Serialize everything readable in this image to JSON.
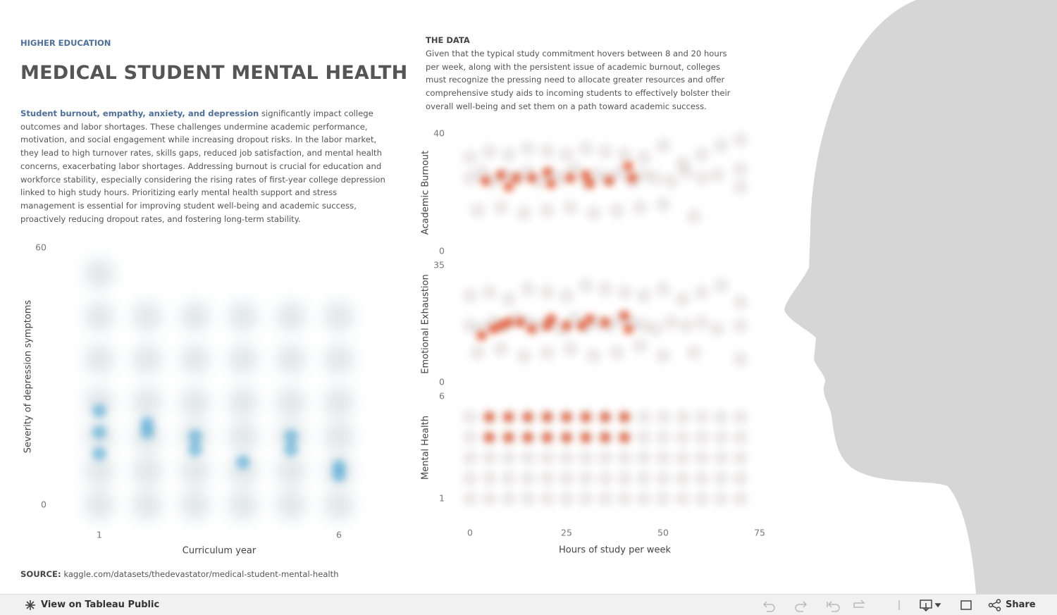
{
  "header": {
    "kicker": "HIGHER EDUCATION",
    "title": "MEDICAL STUDENT MENTAL HEALTH",
    "intro_highlight": "Student burnout, empathy, anxiety, and depression",
    "intro_rest": " significantly impact college outcomes and labor shortages. These challenges undermine academic performance, motivation, and social engagement while increasing dropout risks. In the labor market, they lead to high turnover rates, skills gaps, reduced job satisfaction, and mental health concerns, exacerbating labor shortages. Addressing burnout is crucial for education and workforce stability, especially considering the rising rates of first-year college depression linked to high study hours. Prioritizing early mental health support and stress management is essential for improving student well-being and academic success, proactively reducing dropout rates, and fostering long-term stability."
  },
  "data_note": {
    "heading": "THE DATA",
    "text": "Given that the typical study commitment hovers between 8 and 20 hours per week, along with the persistent issue of academic burnout, colleges must recognize the pressing need to allocate greater resources and offer comprehensive study aids to incoming students to effectively bolster their overall well-being and set them on a path toward academic success."
  },
  "source": {
    "label": "SOURCE:",
    "text": "kaggle.com/datasets/thedevastator/medical-student-mental-health"
  },
  "toolbar": {
    "view": "View on Tableau Public",
    "share": "Share"
  },
  "chart_data": [
    {
      "type": "density",
      "y_label": "Severity of depression symptoms",
      "x_label": "Curriculum year",
      "xlim": [
        0.4,
        6.6
      ],
      "xticks": [
        1,
        6
      ],
      "ylim": [
        0,
        60
      ],
      "yticks": [
        0,
        60
      ],
      "series": [
        {
          "color": "#b7c6cc",
          "x": [
            1,
            1,
            1,
            1,
            1,
            1,
            1,
            2,
            2,
            2,
            2,
            2,
            2,
            3,
            3,
            3,
            3,
            3,
            3,
            4,
            4,
            4,
            4,
            4,
            4,
            5,
            5,
            5,
            5,
            5,
            5,
            6,
            6,
            6,
            6,
            6,
            6
          ],
          "values": [
            0,
            8,
            16,
            24,
            34,
            44,
            54,
            0,
            8,
            16,
            24,
            34,
            44,
            0,
            8,
            16,
            24,
            34,
            44,
            0,
            8,
            16,
            24,
            34,
            44,
            0,
            8,
            16,
            24,
            34,
            44,
            0,
            8,
            16,
            24,
            34,
            44
          ]
        },
        {
          "color": "#3a9fd0",
          "x": [
            1,
            1,
            1,
            2,
            2,
            3,
            3,
            4,
            5,
            5,
            6,
            6
          ],
          "values": [
            12,
            17,
            22,
            17,
            19,
            13,
            16,
            10,
            13,
            16,
            7,
            9
          ]
        }
      ]
    },
    {
      "type": "density",
      "y_label": "Academic Burnout",
      "xlim": [
        -2,
        77
      ],
      "ylim": [
        0,
        40
      ],
      "yticks": [
        0,
        40
      ],
      "series": [
        {
          "color": "#c9c0c0",
          "x": [
            0,
            3,
            6,
            9,
            12,
            15,
            18,
            21,
            24,
            27,
            30,
            33,
            36,
            39,
            42,
            45,
            48,
            52,
            56,
            60,
            64,
            70,
            0,
            5,
            10,
            15,
            20,
            25,
            30,
            35,
            40,
            45,
            50,
            55,
            60,
            65,
            70,
            2,
            8,
            14,
            20,
            26,
            32,
            38,
            44,
            50,
            58,
            70
          ],
          "values": [
            25,
            27,
            24,
            26,
            25,
            27,
            24,
            26,
            25,
            28,
            24,
            26,
            25,
            27,
            24,
            26,
            25,
            24,
            27,
            25,
            26,
            28,
            32,
            34,
            33,
            35,
            34,
            33,
            35,
            34,
            33,
            32,
            36,
            30,
            33,
            36,
            38,
            14,
            15,
            13,
            14,
            15,
            13,
            14,
            15,
            16,
            12,
            22
          ]
        },
        {
          "color": "#e0441c",
          "x": [
            4,
            8,
            10,
            12,
            16,
            20,
            21,
            26,
            30,
            31,
            36,
            41,
            42
          ],
          "values": [
            24,
            26,
            22,
            25,
            25,
            27,
            23,
            25,
            26,
            23,
            24,
            29,
            25
          ]
        }
      ]
    },
    {
      "type": "density",
      "y_label": "Emotional Exhaustion",
      "xlim": [
        -2,
        77
      ],
      "ylim": [
        0,
        35
      ],
      "yticks": [
        0,
        35
      ],
      "series": [
        {
          "color": "#c9c0c0",
          "x": [
            0,
            3,
            6,
            9,
            12,
            15,
            18,
            21,
            24,
            27,
            30,
            33,
            36,
            39,
            42,
            45,
            48,
            52,
            56,
            60,
            64,
            70,
            0,
            5,
            10,
            15,
            20,
            25,
            30,
            35,
            40,
            45,
            50,
            55,
            60,
            65,
            70,
            2,
            8,
            14,
            20,
            26,
            32,
            38,
            44,
            50,
            58,
            70
          ],
          "values": [
            17,
            16,
            18,
            17,
            19,
            18,
            17,
            18,
            16,
            19,
            17,
            18,
            17,
            19,
            18,
            17,
            16,
            18,
            17,
            18,
            16,
            17,
            26,
            27,
            25,
            28,
            27,
            26,
            29,
            28,
            27,
            26,
            28,
            25,
            27,
            29,
            24,
            9,
            10,
            8,
            9,
            10,
            8,
            9,
            11,
            8,
            9,
            7
          ]
        },
        {
          "color": "#e0441c",
          "x": [
            3,
            6,
            8,
            10,
            13,
            16,
            20,
            21,
            25,
            29,
            31,
            35,
            40,
            41
          ],
          "values": [
            14,
            16,
            17,
            18,
            18,
            16,
            17,
            19,
            17,
            17,
            19,
            18,
            20,
            16
          ]
        }
      ]
    },
    {
      "type": "density",
      "y_label": "Mental Health",
      "x_label": "Hours of study per week",
      "xlim": [
        -2,
        77
      ],
      "xticks": [
        0,
        25,
        50,
        75
      ],
      "ylim": [
        1,
        6
      ],
      "yticks": [
        1,
        6
      ],
      "series": [
        {
          "color": "#c9c0c0",
          "x": [
            0,
            5,
            10,
            15,
            20,
            25,
            30,
            35,
            40,
            45,
            50,
            55,
            60,
            65,
            70,
            0,
            5,
            10,
            15,
            20,
            25,
            30,
            35,
            40,
            45,
            50,
            55,
            60,
            65,
            70,
            0,
            5,
            10,
            15,
            20,
            25,
            30,
            35,
            40,
            45,
            50,
            55,
            60,
            65,
            70,
            0,
            5,
            10,
            15,
            20,
            25,
            30,
            35,
            40,
            45,
            50,
            55,
            60,
            65,
            70,
            0,
            5,
            10,
            15,
            20,
            25,
            30,
            35,
            40,
            45,
            50,
            55,
            60,
            65,
            70
          ],
          "values": [
            5,
            5,
            5,
            5,
            5,
            5,
            5,
            5,
            5,
            5,
            5,
            5,
            5,
            5,
            5,
            4,
            4,
            4,
            4,
            4,
            4,
            4,
            4,
            4,
            4,
            4,
            4,
            4,
            4,
            4,
            3,
            3,
            3,
            3,
            3,
            3,
            3,
            3,
            3,
            3,
            3,
            3,
            3,
            3,
            3,
            2,
            2,
            2,
            2,
            2,
            2,
            2,
            2,
            2,
            2,
            2,
            2,
            2,
            2,
            2,
            1,
            1,
            1,
            1,
            1,
            1,
            1,
            1,
            1,
            1,
            1,
            1,
            1,
            1,
            1
          ]
        },
        {
          "color": "#e0441c",
          "x": [
            5,
            10,
            15,
            20,
            25,
            30,
            35,
            40,
            5,
            10,
            15,
            20,
            25,
            30,
            35,
            40
          ],
          "values": [
            5,
            5,
            5,
            5,
            5,
            5,
            5,
            5,
            4,
            4,
            4,
            4,
            4,
            4,
            4,
            4
          ]
        }
      ]
    }
  ]
}
